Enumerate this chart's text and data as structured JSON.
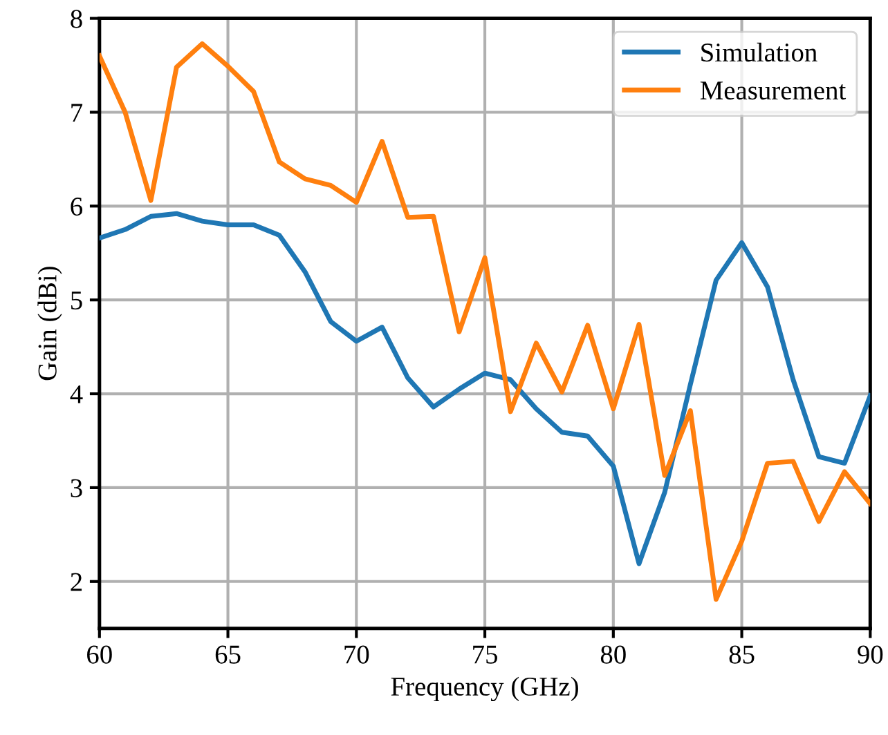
{
  "chart_data": {
    "type": "line",
    "xlabel": "Frequency (GHz)",
    "ylabel": "Gain (dBi)",
    "x": [
      60,
      61,
      62,
      63,
      64,
      65,
      66,
      67,
      68,
      69,
      70,
      71,
      72,
      73,
      74,
      75,
      76,
      77,
      78,
      79,
      80,
      81,
      82,
      83,
      84,
      85,
      86,
      87,
      88,
      89,
      90
    ],
    "series": [
      {
        "name": "Simulation",
        "color": "#1f77b4",
        "values": [
          5.66,
          5.75,
          5.89,
          5.92,
          5.84,
          5.8,
          5.8,
          5.69,
          5.3,
          4.77,
          4.56,
          4.71,
          4.17,
          3.86,
          4.05,
          4.22,
          4.15,
          3.84,
          3.59,
          3.55,
          3.23,
          2.19,
          2.95,
          4.1,
          5.21,
          5.61,
          5.14,
          4.15,
          3.33,
          3.26,
          3.98
        ]
      },
      {
        "name": "Measurement",
        "color": "#ff7f0e",
        "values": [
          7.6,
          7.0,
          6.06,
          7.48,
          7.73,
          7.49,
          7.22,
          6.47,
          6.29,
          6.22,
          6.04,
          6.69,
          5.88,
          5.89,
          4.66,
          5.45,
          3.81,
          4.54,
          4.02,
          4.73,
          3.84,
          4.74,
          3.13,
          3.82,
          1.81,
          2.43,
          3.26,
          3.28,
          2.64,
          3.17,
          2.83
        ]
      }
    ],
    "xlim": [
      60,
      90
    ],
    "ylim": [
      1.5,
      8
    ],
    "xticks": [
      60,
      65,
      70,
      75,
      80,
      85,
      90
    ],
    "yticks": [
      2,
      3,
      4,
      5,
      6,
      7,
      8
    ],
    "grid": true,
    "legend": "top right",
    "marker": "none",
    "line_style": "solid"
  }
}
